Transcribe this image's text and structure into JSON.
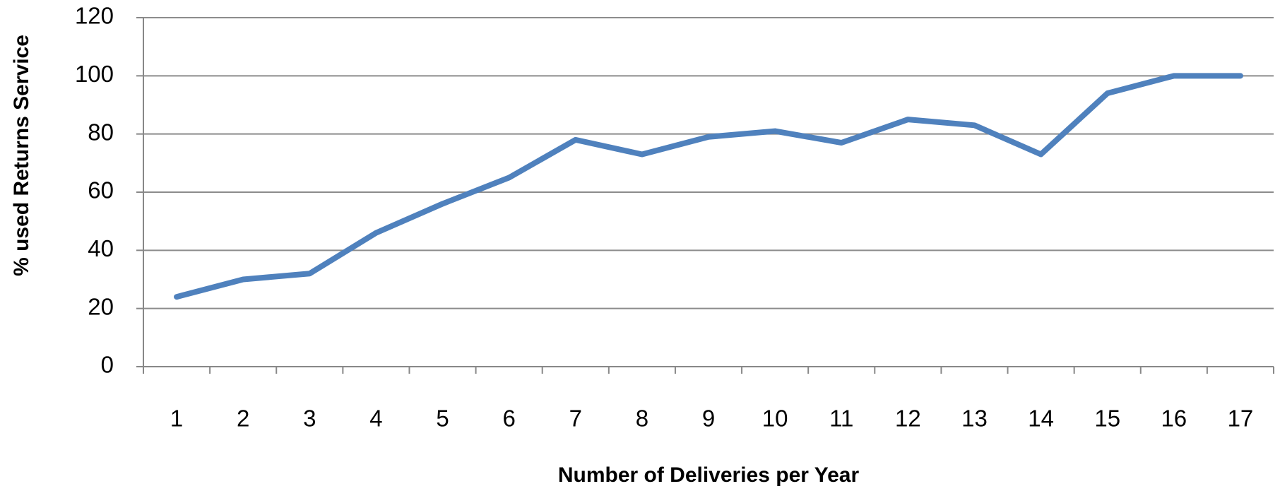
{
  "chart_data": {
    "type": "line",
    "x_label": "Number of Deliveries per Year",
    "y_label": "% used Returns Service",
    "categories": [
      "1",
      "2",
      "3",
      "4",
      "5",
      "6",
      "7",
      "8",
      "9",
      "10",
      "11",
      "12",
      "13",
      "14",
      "15",
      "16",
      "17"
    ],
    "series": [
      {
        "name": "% used Returns Service",
        "color": "#4f81bd",
        "values": [
          24,
          30,
          32,
          46,
          56,
          65,
          78,
          73,
          79,
          81,
          77,
          85,
          83,
          73,
          94,
          100,
          100
        ]
      }
    ],
    "ylim": [
      0,
      120
    ],
    "yticks": [
      0,
      20,
      40,
      60,
      80,
      100,
      120
    ],
    "grid": true,
    "legend": false
  }
}
